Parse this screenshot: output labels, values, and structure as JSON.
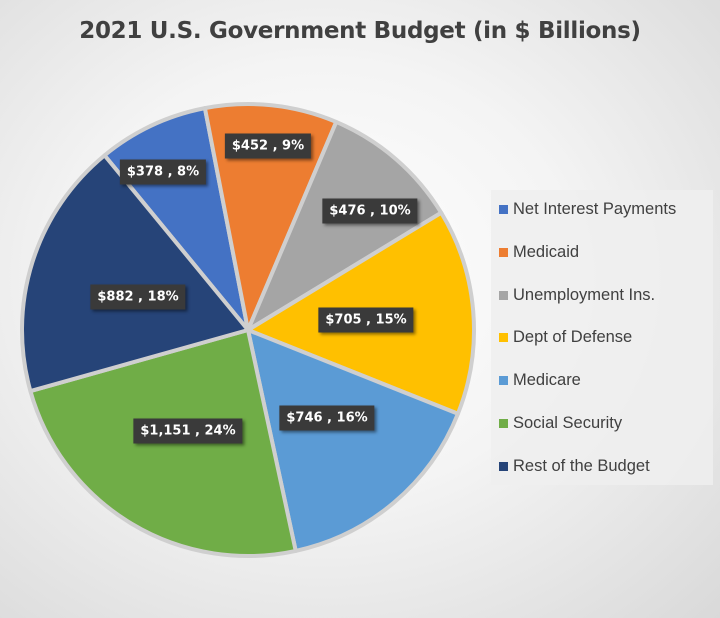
{
  "chart_data": {
    "type": "pie",
    "title": "2021 U.S. Government Budget (in $ Billions)",
    "slices": [
      {
        "name": "Net Interest Payments",
        "value": 378,
        "label": "$378 , 8%",
        "color": "#4472c4"
      },
      {
        "name": "Medicaid",
        "value": 452,
        "label": "$452 , 9%",
        "color": "#ed7d31"
      },
      {
        "name": "Unemployment Ins.",
        "value": 476,
        "label": "$476 , 10%",
        "color": "#a5a5a5"
      },
      {
        "name": "Dept of Defense",
        "value": 705,
        "label": "$705 , 15%",
        "color": "#ffc000"
      },
      {
        "name": "Medicare",
        "value": 746,
        "label": "$746 , 16%",
        "color": "#5b9bd5"
      },
      {
        "name": "Social Security",
        "value": 1151,
        "label": "$1,151 , 24%",
        "color": "#70ad47"
      },
      {
        "name": "Rest of the Budget",
        "value": 882,
        "label": "$882 , 18%",
        "color": "#264478"
      }
    ],
    "legend_position": "right"
  }
}
